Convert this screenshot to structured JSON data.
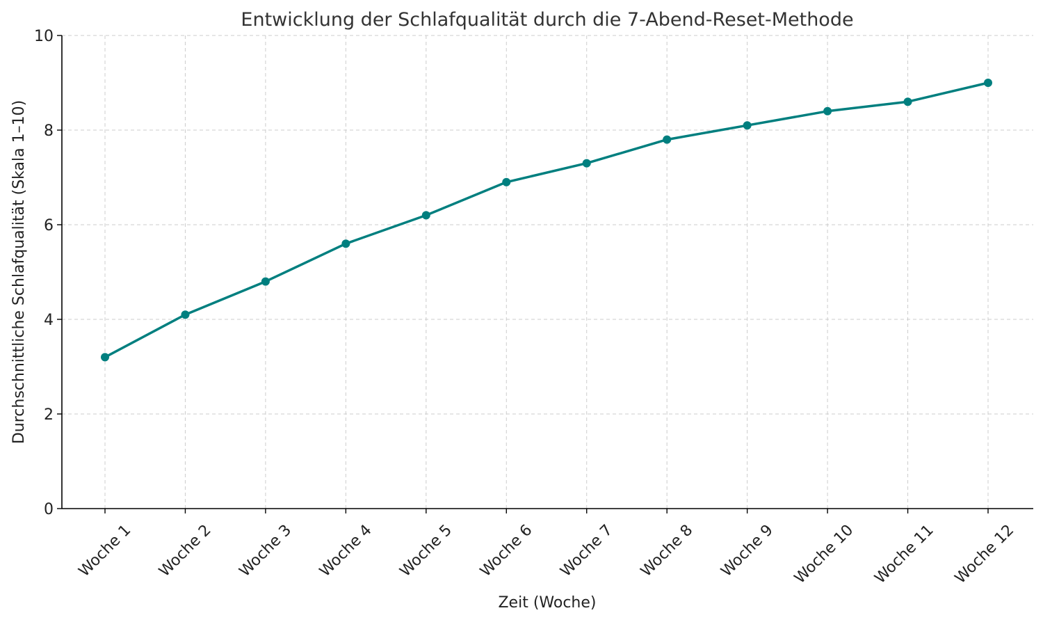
{
  "colors": {
    "series": "#007f7f",
    "grid": "#cccccc",
    "axis": "#000000"
  },
  "chart_data": {
    "type": "line",
    "title": "Entwicklung der Schlafqualität durch die 7-Abend-Reset-Methode",
    "xlabel": "Zeit (Woche)",
    "ylabel": "Durchschnittliche Schlafqualität (Skala 1–10)",
    "categories": [
      "Woche 1",
      "Woche 2",
      "Woche 3",
      "Woche 4",
      "Woche 5",
      "Woche 6",
      "Woche 7",
      "Woche 8",
      "Woche 9",
      "Woche 10",
      "Woche 11",
      "Woche 12"
    ],
    "series": [
      {
        "values": [
          3.2,
          4.1,
          4.8,
          5.6,
          6.2,
          6.9,
          7.3,
          7.8,
          8.1,
          8.4,
          8.6,
          9.0
        ],
        "marker": "circle"
      }
    ],
    "ylim": [
      0,
      10
    ],
    "yticks": [
      "0",
      "2",
      "4",
      "6",
      "8",
      "10"
    ],
    "grid": true,
    "legend": "none"
  }
}
